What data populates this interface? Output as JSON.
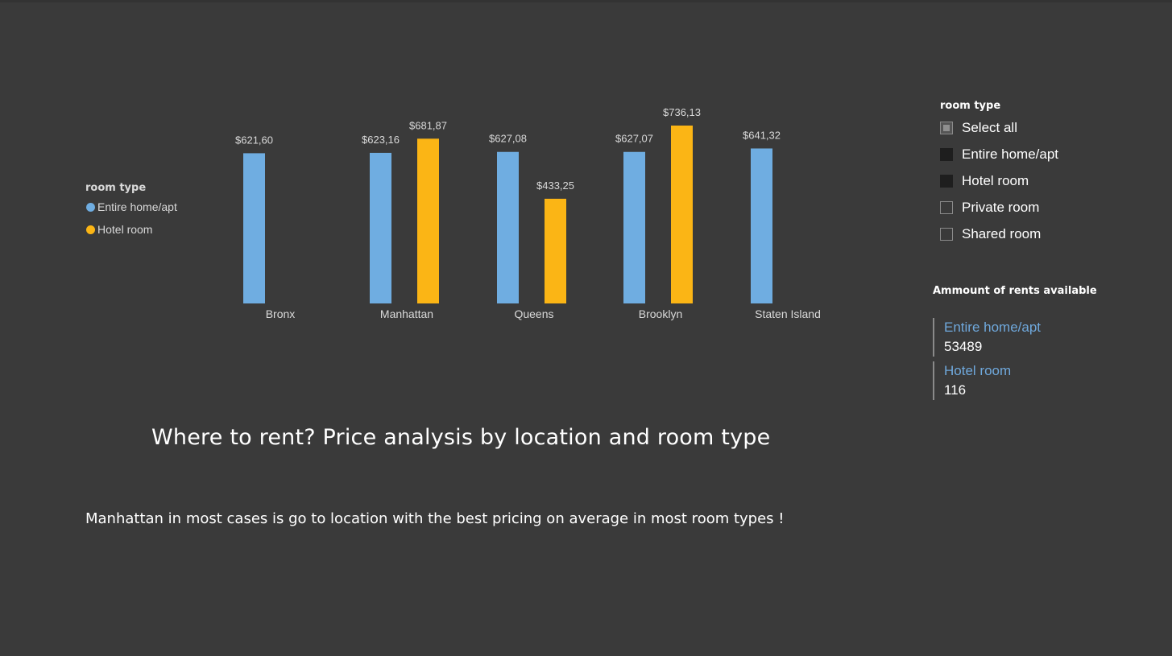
{
  "chart_data": {
    "type": "bar",
    "legend_title": "room type",
    "legend_position": "left",
    "categories": [
      "Bronx",
      "Manhattan",
      "Queens",
      "Brooklyn",
      "Staten Island"
    ],
    "series": [
      {
        "name": "Entire home/apt",
        "color": "#6fade1",
        "values": [
          621.6,
          623.16,
          627.08,
          627.07,
          641.32
        ],
        "labels": [
          "$621,60",
          "$623,16",
          "$627,08",
          "$627,07",
          "$641,32"
        ]
      },
      {
        "name": "Hotel room",
        "color": "#fbb515",
        "values": [
          null,
          681.87,
          433.25,
          736.13,
          null
        ],
        "labels": [
          null,
          "$681,87",
          "$433,25",
          "$736,13",
          null
        ]
      }
    ],
    "ylim": [
      0,
      736.13
    ],
    "grid": false
  },
  "slicer": {
    "title": "room type",
    "items": [
      {
        "label": "Select all",
        "state": "partial"
      },
      {
        "label": "Entire home/apt",
        "state": "selected"
      },
      {
        "label": "Hotel room",
        "state": "selected"
      },
      {
        "label": "Private room",
        "state": "unselected"
      },
      {
        "label": "Shared room",
        "state": "unselected"
      }
    ]
  },
  "card": {
    "title": "Ammount of rents available",
    "items": [
      {
        "label": "Entire home/apt",
        "value": "53489"
      },
      {
        "label": "Hotel room",
        "value": "116"
      }
    ]
  },
  "headline": "Where to rent? Price analysis by location and room type",
  "subtext": "Manhattan in most cases is go to location with the best pricing on average in most room types !"
}
